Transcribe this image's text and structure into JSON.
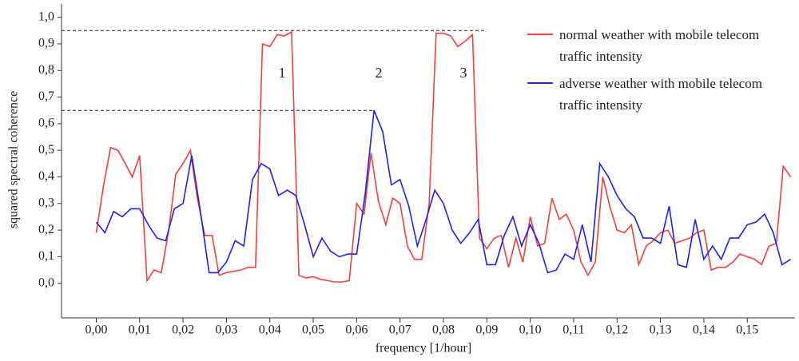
{
  "chart_data": {
    "type": "line",
    "x_label": "frequency [1/hour]",
    "y_label": "squared spectral coherence",
    "xlim": [
      -0.008,
      0.161
    ],
    "ylim": [
      -0.13,
      1.05
    ],
    "xticks": [
      {
        "value": 0,
        "label": "0,00"
      },
      {
        "value": 0.01,
        "label": "0,01"
      },
      {
        "value": 0.02,
        "label": "0,02"
      },
      {
        "value": 0.03,
        "label": "0,03"
      },
      {
        "value": 0.04,
        "label": "0,04"
      },
      {
        "value": 0.05,
        "label": "0,05"
      },
      {
        "value": 0.06,
        "label": "0,06"
      },
      {
        "value": 0.07,
        "label": "0,07"
      },
      {
        "value": 0.08,
        "label": "0,08"
      },
      {
        "value": 0.09,
        "label": "0,09"
      },
      {
        "value": 0.1,
        "label": "0,10"
      },
      {
        "value": 0.11,
        "label": "0,11"
      },
      {
        "value": 0.12,
        "label": "0,12"
      },
      {
        "value": 0.13,
        "label": "0,13"
      },
      {
        "value": 0.14,
        "label": "0,14"
      },
      {
        "value": 0.15,
        "label": "0,15"
      }
    ],
    "yticks": [
      {
        "value": 0,
        "label": "0,0"
      },
      {
        "value": 0.1,
        "label": "0,1"
      },
      {
        "value": 0.2,
        "label": "0,2"
      },
      {
        "value": 0.3,
        "label": "0,3"
      },
      {
        "value": 0.4,
        "label": "0,4"
      },
      {
        "value": 0.5,
        "label": "0,5"
      },
      {
        "value": 0.6,
        "label": "0,6"
      },
      {
        "value": 0.7,
        "label": "0,7"
      },
      {
        "value": 0.8,
        "label": "0,8"
      },
      {
        "value": 0.9,
        "label": "0,9"
      },
      {
        "value": 1,
        "label": "1,0"
      }
    ],
    "legend": "upper right",
    "reference_lines": [
      {
        "y": 0.95,
        "x_end": 0.09
      },
      {
        "y": 0.65,
        "x_end": 0.064
      }
    ],
    "annotations": [
      "1",
      "2",
      "3"
    ],
    "series": [
      {
        "name": "normal weather with mobile telecom traffic intensity",
        "color": "#f04040",
        "x": [
          0,
          0.0017,
          0.0033,
          0.005,
          0.0067,
          0.0083,
          0.01,
          0.0117,
          0.0133,
          0.015,
          0.0167,
          0.0183,
          0.02,
          0.0217,
          0.0233,
          0.025,
          0.0267,
          0.0283,
          0.03,
          0.0317,
          0.0333,
          0.035,
          0.0367,
          0.0383,
          0.04,
          0.0417,
          0.0433,
          0.045,
          0.0467,
          0.0483,
          0.05,
          0.0517,
          0.0533,
          0.055,
          0.0567,
          0.0583,
          0.06,
          0.0617,
          0.0633,
          0.065,
          0.0667,
          0.0683,
          0.07,
          0.0717,
          0.0733,
          0.075,
          0.0767,
          0.0783,
          0.08,
          0.0817,
          0.0833,
          0.085,
          0.0867,
          0.0883,
          0.09,
          0.0917,
          0.0933,
          0.095,
          0.0967,
          0.0983,
          0.1,
          0.1017,
          0.1033,
          0.105,
          0.1067,
          0.1083,
          0.11,
          0.1117,
          0.1133,
          0.115,
          0.1167,
          0.1183,
          0.12,
          0.1217,
          0.1233,
          0.125,
          0.1267,
          0.1283,
          0.13,
          0.1317,
          0.1333,
          0.135,
          0.1367,
          0.1383,
          0.14,
          0.1417,
          0.1433,
          0.145,
          0.1467,
          0.1483,
          0.15,
          0.1517,
          0.1533,
          0.155,
          0.1567,
          0.1583,
          0.16
        ],
        "values": [
          0.19,
          0.37,
          0.51,
          0.5,
          0.45,
          0.4,
          0.48,
          0.01,
          0.05,
          0.04,
          0.2,
          0.41,
          0.45,
          0.5,
          0.32,
          0.18,
          0.18,
          0.03,
          0.04,
          0.045,
          0.05,
          0.06,
          0.06,
          0.9,
          0.89,
          0.935,
          0.93,
          0.945,
          0.03,
          0.02,
          0.025,
          0.015,
          0.01,
          0.005,
          0.005,
          0.01,
          0.3,
          0.26,
          0.49,
          0.31,
          0.22,
          0.32,
          0.3,
          0.14,
          0.09,
          0.09,
          0.3,
          0.94,
          0.94,
          0.93,
          0.89,
          0.91,
          0.935,
          0.17,
          0.13,
          0.17,
          0.18,
          0.06,
          0.17,
          0.08,
          0.25,
          0.14,
          0.15,
          0.32,
          0.24,
          0.26,
          0.2,
          0.08,
          0.03,
          0.08,
          0.4,
          0.29,
          0.2,
          0.19,
          0.22,
          0.07,
          0.14,
          0.16,
          0.19,
          0.2,
          0.15,
          0.16,
          0.17,
          0.19,
          0.2,
          0.05,
          0.06,
          0.06,
          0.08,
          0.11,
          0.1,
          0.09,
          0.07,
          0.14,
          0.15,
          0.44,
          0.4
        ]
      },
      {
        "name": "adverse weather with mobile telecom traffic intensity",
        "color": "#2020f0",
        "x": [
          0,
          0.002,
          0.004,
          0.006,
          0.008,
          0.01,
          0.012,
          0.014,
          0.016,
          0.018,
          0.02,
          0.022,
          0.024,
          0.026,
          0.028,
          0.03,
          0.032,
          0.034,
          0.036,
          0.038,
          0.04,
          0.042,
          0.044,
          0.046,
          0.048,
          0.05,
          0.052,
          0.054,
          0.056,
          0.058,
          0.06,
          0.062,
          0.064,
          0.066,
          0.068,
          0.07,
          0.072,
          0.074,
          0.076,
          0.078,
          0.08,
          0.082,
          0.084,
          0.086,
          0.088,
          0.09,
          0.092,
          0.094,
          0.096,
          0.098,
          0.1,
          0.102,
          0.104,
          0.106,
          0.108,
          0.11,
          0.112,
          0.114,
          0.116,
          0.118,
          0.12,
          0.122,
          0.124,
          0.126,
          0.128,
          0.13,
          0.132,
          0.134,
          0.136,
          0.138,
          0.14,
          0.142,
          0.144,
          0.146,
          0.148,
          0.15,
          0.152,
          0.154,
          0.156,
          0.158,
          0.16
        ],
        "values": [
          0.23,
          0.19,
          0.27,
          0.25,
          0.28,
          0.28,
          0.22,
          0.17,
          0.16,
          0.28,
          0.3,
          0.48,
          0.27,
          0.04,
          0.04,
          0.08,
          0.16,
          0.14,
          0.39,
          0.45,
          0.43,
          0.33,
          0.35,
          0.33,
          0.22,
          0.1,
          0.17,
          0.12,
          0.1,
          0.11,
          0.11,
          0.34,
          0.65,
          0.57,
          0.37,
          0.39,
          0.29,
          0.14,
          0.24,
          0.35,
          0.3,
          0.2,
          0.15,
          0.19,
          0.24,
          0.07,
          0.07,
          0.18,
          0.25,
          0.14,
          0.22,
          0.15,
          0.04,
          0.05,
          0.11,
          0.09,
          0.22,
          0.08,
          0.45,
          0.4,
          0.33,
          0.28,
          0.25,
          0.17,
          0.17,
          0.15,
          0.29,
          0.07,
          0.06,
          0.24,
          0.09,
          0.14,
          0.09,
          0.17,
          0.17,
          0.22,
          0.23,
          0.26,
          0.19,
          0.07,
          0.09
        ]
      }
    ]
  }
}
